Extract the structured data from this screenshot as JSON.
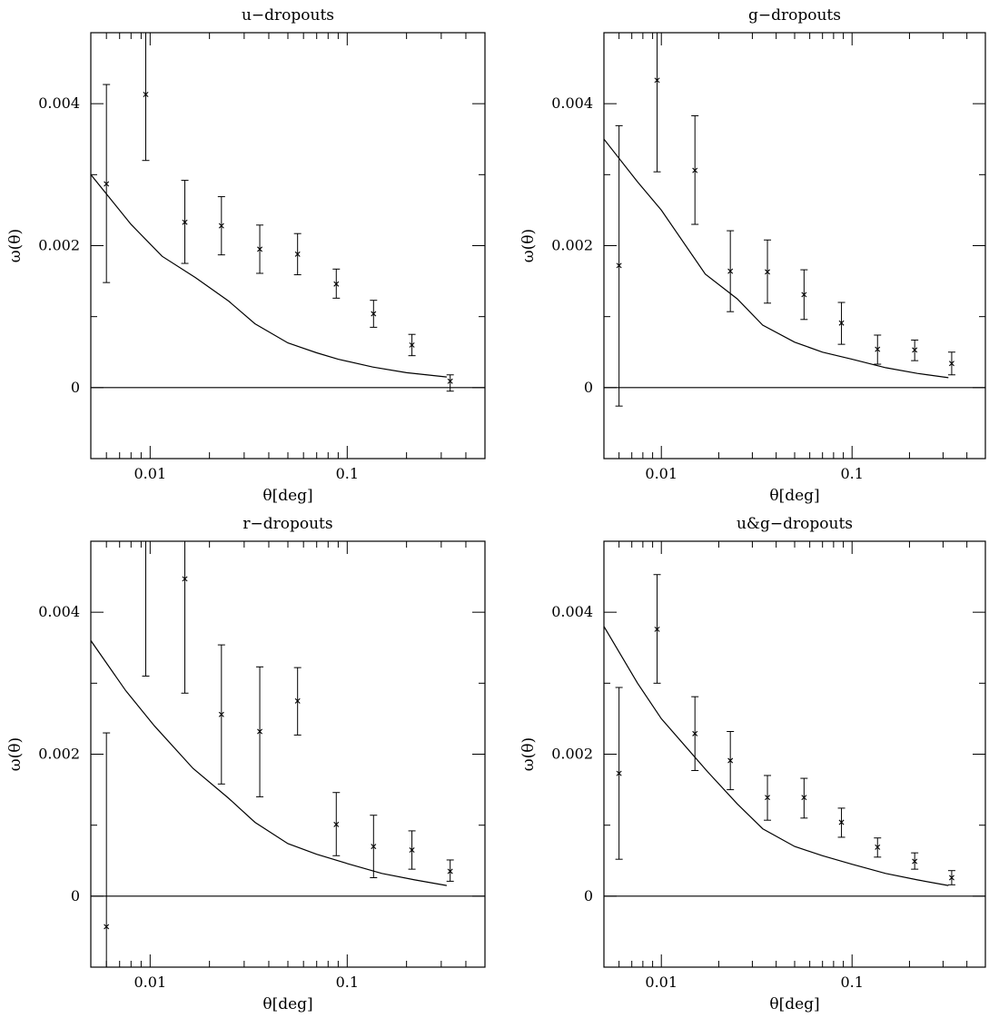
{
  "chart_data": [
    {
      "type": "scatter",
      "title": "u−dropouts",
      "xlabel": "θ[deg]",
      "ylabel": "ω(θ)",
      "xscale": "log",
      "xlim": [
        0.005,
        0.5
      ],
      "ylim": [
        -0.001,
        0.005
      ],
      "xticks": [
        {
          "value": 0.01,
          "label": "0.01"
        },
        {
          "value": 0.1,
          "label": "0.1"
        }
      ],
      "yticks": [
        {
          "value": 0,
          "label": "0"
        },
        {
          "value": 0.002,
          "label": "0.002"
        },
        {
          "value": 0.004,
          "label": "0.004"
        }
      ],
      "points": [
        {
          "x": 0.006,
          "y": 0.00287,
          "lo": 0.00148,
          "hi": 0.00427
        },
        {
          "x": 0.0095,
          "y": 0.00413,
          "lo": 0.0032,
          "hi": 0.0051
        },
        {
          "x": 0.015,
          "y": 0.00233,
          "lo": 0.00175,
          "hi": 0.00292
        },
        {
          "x": 0.023,
          "y": 0.00228,
          "lo": 0.00187,
          "hi": 0.00269
        },
        {
          "x": 0.036,
          "y": 0.00195,
          "lo": 0.00161,
          "hi": 0.00229
        },
        {
          "x": 0.056,
          "y": 0.00188,
          "lo": 0.00159,
          "hi": 0.00217
        },
        {
          "x": 0.088,
          "y": 0.00146,
          "lo": 0.00126,
          "hi": 0.00167
        },
        {
          "x": 0.136,
          "y": 0.00104,
          "lo": 0.00085,
          "hi": 0.00123
        },
        {
          "x": 0.213,
          "y": 0.0006,
          "lo": 0.00045,
          "hi": 0.00075
        },
        {
          "x": 0.333,
          "y": 9e-05,
          "lo": -5e-05,
          "hi": 0.00018
        }
      ],
      "model": [
        {
          "x": 0.005,
          "y": 0.003
        },
        {
          "x": 0.008,
          "y": 0.0023
        },
        {
          "x": 0.0115,
          "y": 0.00185
        },
        {
          "x": 0.017,
          "y": 0.00155
        },
        {
          "x": 0.025,
          "y": 0.00122
        },
        {
          "x": 0.034,
          "y": 0.0009
        },
        {
          "x": 0.05,
          "y": 0.00063
        },
        {
          "x": 0.07,
          "y": 0.00049
        },
        {
          "x": 0.09,
          "y": 0.0004
        },
        {
          "x": 0.135,
          "y": 0.00029
        },
        {
          "x": 0.2,
          "y": 0.00021
        },
        {
          "x": 0.32,
          "y": 0.00015
        }
      ]
    },
    {
      "type": "scatter",
      "title": "g−dropouts",
      "xlabel": "θ[deg]",
      "ylabel": "ω(θ)",
      "xscale": "log",
      "xlim": [
        0.005,
        0.5
      ],
      "ylim": [
        -0.001,
        0.005
      ],
      "xticks": [
        {
          "value": 0.01,
          "label": "0.01"
        },
        {
          "value": 0.1,
          "label": "0.1"
        }
      ],
      "yticks": [
        {
          "value": 0,
          "label": "0"
        },
        {
          "value": 0.002,
          "label": "0.002"
        },
        {
          "value": 0.004,
          "label": "0.004"
        }
      ],
      "points": [
        {
          "x": 0.006,
          "y": 0.00172,
          "lo": -0.00026,
          "hi": 0.00369
        },
        {
          "x": 0.0095,
          "y": 0.00433,
          "lo": 0.00304,
          "hi": 0.0051
        },
        {
          "x": 0.015,
          "y": 0.00306,
          "lo": 0.0023,
          "hi": 0.00383
        },
        {
          "x": 0.023,
          "y": 0.00164,
          "lo": 0.00107,
          "hi": 0.00221
        },
        {
          "x": 0.036,
          "y": 0.00163,
          "lo": 0.00119,
          "hi": 0.00208
        },
        {
          "x": 0.056,
          "y": 0.00131,
          "lo": 0.00096,
          "hi": 0.00166
        },
        {
          "x": 0.088,
          "y": 0.00091,
          "lo": 0.00061,
          "hi": 0.0012
        },
        {
          "x": 0.136,
          "y": 0.00054,
          "lo": 0.00033,
          "hi": 0.00074
        },
        {
          "x": 0.213,
          "y": 0.00053,
          "lo": 0.00038,
          "hi": 0.00067
        },
        {
          "x": 0.333,
          "y": 0.00034,
          "lo": 0.00018,
          "hi": 0.0005
        }
      ],
      "model": [
        {
          "x": 0.005,
          "y": 0.0035
        },
        {
          "x": 0.0075,
          "y": 0.0029
        },
        {
          "x": 0.01,
          "y": 0.0025
        },
        {
          "x": 0.017,
          "y": 0.0016
        },
        {
          "x": 0.025,
          "y": 0.00125
        },
        {
          "x": 0.034,
          "y": 0.00088
        },
        {
          "x": 0.05,
          "y": 0.00064
        },
        {
          "x": 0.07,
          "y": 0.0005
        },
        {
          "x": 0.1,
          "y": 0.0004
        },
        {
          "x": 0.15,
          "y": 0.00028
        },
        {
          "x": 0.22,
          "y": 0.0002
        },
        {
          "x": 0.32,
          "y": 0.00014
        }
      ]
    },
    {
      "type": "scatter",
      "title": "r−dropouts",
      "xlabel": "θ[deg]",
      "ylabel": "ω(θ)",
      "xscale": "log",
      "xlim": [
        0.005,
        0.5
      ],
      "ylim": [
        -0.001,
        0.005
      ],
      "xticks": [
        {
          "value": 0.01,
          "label": "0.01"
        },
        {
          "value": 0.1,
          "label": "0.1"
        }
      ],
      "yticks": [
        {
          "value": 0,
          "label": "0"
        },
        {
          "value": 0.002,
          "label": "0.002"
        },
        {
          "value": 0.004,
          "label": "0.004"
        }
      ],
      "points": [
        {
          "x": 0.006,
          "y": -0.00043,
          "lo": -0.0011,
          "hi": 0.0023
        },
        {
          "x": 0.0095,
          "y": 0.0053,
          "lo": 0.0031,
          "hi": 0.0053
        },
        {
          "x": 0.015,
          "y": 0.00447,
          "lo": 0.00286,
          "hi": 0.0051
        },
        {
          "x": 0.023,
          "y": 0.00256,
          "lo": 0.00158,
          "hi": 0.00354
        },
        {
          "x": 0.036,
          "y": 0.00232,
          "lo": 0.0014,
          "hi": 0.00323
        },
        {
          "x": 0.056,
          "y": 0.00275,
          "lo": 0.00227,
          "hi": 0.00322
        },
        {
          "x": 0.088,
          "y": 0.00101,
          "lo": 0.00057,
          "hi": 0.00146
        },
        {
          "x": 0.136,
          "y": 0.0007,
          "lo": 0.00026,
          "hi": 0.00114
        },
        {
          "x": 0.213,
          "y": 0.00065,
          "lo": 0.00038,
          "hi": 0.00092
        },
        {
          "x": 0.333,
          "y": 0.00035,
          "lo": 0.00021,
          "hi": 0.00051
        }
      ],
      "model": [
        {
          "x": 0.005,
          "y": 0.0036
        },
        {
          "x": 0.0075,
          "y": 0.0029
        },
        {
          "x": 0.0105,
          "y": 0.0024
        },
        {
          "x": 0.0165,
          "y": 0.0018
        },
        {
          "x": 0.025,
          "y": 0.00138
        },
        {
          "x": 0.034,
          "y": 0.00104
        },
        {
          "x": 0.05,
          "y": 0.00074
        },
        {
          "x": 0.07,
          "y": 0.00059
        },
        {
          "x": 0.1,
          "y": 0.00046
        },
        {
          "x": 0.15,
          "y": 0.00032
        },
        {
          "x": 0.22,
          "y": 0.00023
        },
        {
          "x": 0.32,
          "y": 0.00015
        }
      ]
    },
    {
      "type": "scatter",
      "title": "u&g−dropouts",
      "xlabel": "θ[deg]",
      "ylabel": "ω(θ)",
      "xscale": "log",
      "xlim": [
        0.005,
        0.5
      ],
      "ylim": [
        -0.001,
        0.005
      ],
      "xticks": [
        {
          "value": 0.01,
          "label": "0.01"
        },
        {
          "value": 0.1,
          "label": "0.1"
        }
      ],
      "yticks": [
        {
          "value": 0,
          "label": "0"
        },
        {
          "value": 0.002,
          "label": "0.002"
        },
        {
          "value": 0.004,
          "label": "0.004"
        }
      ],
      "points": [
        {
          "x": 0.006,
          "y": 0.00173,
          "lo": 0.00052,
          "hi": 0.00294
        },
        {
          "x": 0.0095,
          "y": 0.00376,
          "lo": 0.003,
          "hi": 0.00453
        },
        {
          "x": 0.015,
          "y": 0.00229,
          "lo": 0.00177,
          "hi": 0.00281
        },
        {
          "x": 0.023,
          "y": 0.00191,
          "lo": 0.0015,
          "hi": 0.00232
        },
        {
          "x": 0.036,
          "y": 0.00139,
          "lo": 0.00107,
          "hi": 0.0017
        },
        {
          "x": 0.056,
          "y": 0.00139,
          "lo": 0.0011,
          "hi": 0.00166
        },
        {
          "x": 0.088,
          "y": 0.00104,
          "lo": 0.00083,
          "hi": 0.00124
        },
        {
          "x": 0.136,
          "y": 0.00069,
          "lo": 0.00055,
          "hi": 0.00082
        },
        {
          "x": 0.213,
          "y": 0.00049,
          "lo": 0.00038,
          "hi": 0.00061
        },
        {
          "x": 0.333,
          "y": 0.00026,
          "lo": 0.00016,
          "hi": 0.00036
        }
      ],
      "model": [
        {
          "x": 0.005,
          "y": 0.0038
        },
        {
          "x": 0.0075,
          "y": 0.003
        },
        {
          "x": 0.01,
          "y": 0.0025
        },
        {
          "x": 0.0175,
          "y": 0.00175
        },
        {
          "x": 0.025,
          "y": 0.0013
        },
        {
          "x": 0.034,
          "y": 0.00095
        },
        {
          "x": 0.05,
          "y": 0.0007
        },
        {
          "x": 0.07,
          "y": 0.00057
        },
        {
          "x": 0.1,
          "y": 0.00045
        },
        {
          "x": 0.15,
          "y": 0.00032
        },
        {
          "x": 0.22,
          "y": 0.00023
        },
        {
          "x": 0.32,
          "y": 0.00015
        }
      ]
    }
  ]
}
